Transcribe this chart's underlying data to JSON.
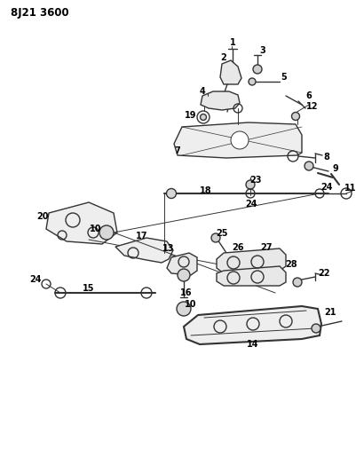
{
  "title": "8J21 3600",
  "bg_color": "#ffffff",
  "line_color": "#333333",
  "text_color": "#000000",
  "title_fontsize": 8.5,
  "label_fontsize": 7,
  "figsize": [
    4.02,
    5.33
  ],
  "dpi": 100
}
